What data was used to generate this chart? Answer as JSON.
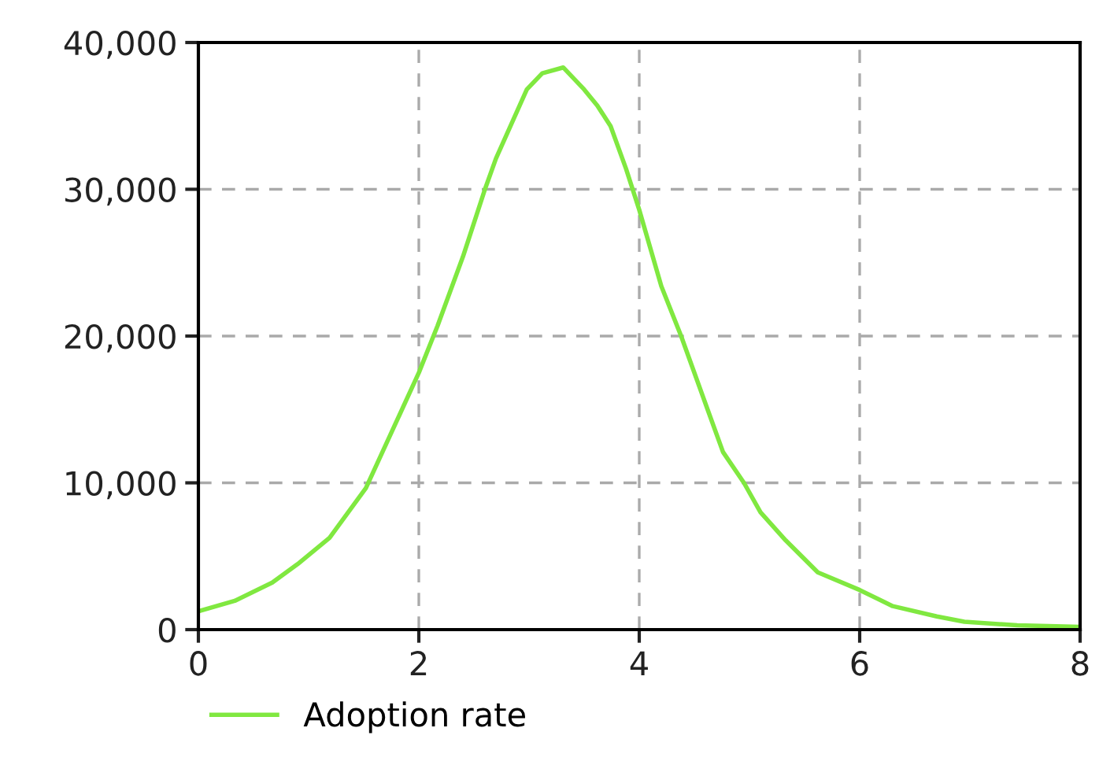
{
  "chart_data": {
    "type": "line",
    "x": [
      0,
      0.33,
      0.67,
      0.9,
      1.19,
      1.52,
      1.76,
      2.0,
      2.17,
      2.4,
      2.6,
      2.7,
      2.98,
      3.12,
      3.31,
      3.5,
      3.62,
      3.74,
      3.88,
      4.0,
      4.2,
      4.38,
      4.62,
      4.76,
      4.95,
      5.1,
      5.33,
      5.62,
      6.0,
      6.3,
      6.7,
      6.95,
      7.43,
      8.0
    ],
    "series": [
      {
        "name": "Adoption rate",
        "color": "#80e840",
        "values": [
          1250,
          1960,
          3200,
          4460,
          6250,
          9640,
          13570,
          17500,
          20700,
          25400,
          30000,
          32100,
          36800,
          37900,
          38300,
          36800,
          35700,
          34300,
          31400,
          28600,
          23400,
          20000,
          15000,
          12100,
          10000,
          8000,
          6070,
          3900,
          2700,
          1600,
          900,
          540,
          290,
          180
        ]
      }
    ],
    "xlim": [
      0,
      8
    ],
    "xticks": [
      0,
      2,
      4,
      6,
      8
    ],
    "ylim": [
      0,
      40000
    ],
    "yticks": [
      {
        "value": 0,
        "label": "0"
      },
      {
        "value": 10000,
        "label": "10,000"
      },
      {
        "value": 20000,
        "label": "20,000"
      },
      {
        "value": 30000,
        "label": "30,000"
      },
      {
        "value": 40000,
        "label": "40,000"
      }
    ],
    "grid": true,
    "legend": "bottom left",
    "line_style": "solid",
    "marker": "none"
  }
}
